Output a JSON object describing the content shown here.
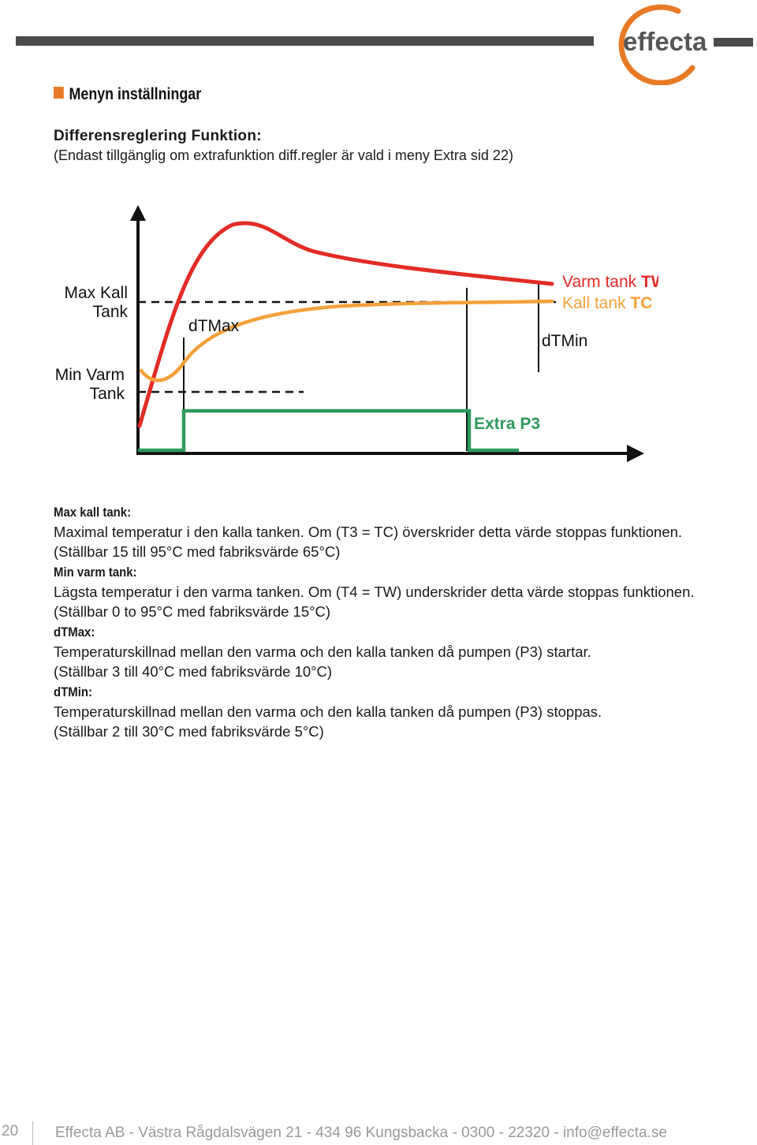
{
  "logo": {
    "text": "effecta",
    "ring_color": "#e97a25",
    "text_color": "#555555"
  },
  "section": {
    "title": "Menyn inställningar",
    "accent": "#e97a25"
  },
  "function": {
    "title": "Differensreglering Funktion:",
    "note": "(Endast tillgänglig om extrafunktion diff.regler är vald i meny Extra sid 22)"
  },
  "chart": {
    "label_max_kall": [
      "Max Kall",
      "Tank"
    ],
    "label_min_varm": [
      "Min Varm",
      "Tank"
    ],
    "label_dtmax": "dTMax",
    "label_dtmin": "dTMin",
    "legend_warm_prefix": "Varm tank ",
    "legend_warm_code": "TW",
    "legend_cold_prefix": "Kall tank ",
    "legend_cold_code": "TC",
    "label_extra": "Extra P3",
    "colors": {
      "warm": "#e32b26",
      "cold": "#f5a03a",
      "pump": "#2e9a5b",
      "axis": "#111111"
    }
  },
  "defs": [
    {
      "term": "Max kall tank:",
      "lines": [
        "Maximal temperatur i den kalla tanken. Om (T3 = TC) överskrider detta värde stoppas funktionen.",
        "(Ställbar 15 till 95°C med fabriksvärde 65°C)"
      ]
    },
    {
      "term": "Min varm tank:",
      "lines": [
        "Lägsta temperatur i den varma tanken. Om (T4 = TW) underskrider detta värde stoppas funktionen. (Ställbar 0 to 95°C med fabriksvärde 15°C)"
      ]
    },
    {
      "term": "dTMax:",
      "lines": [
        "Temperaturskillnad mellan den varma och den kalla tanken då pumpen (P3) startar.",
        "(Ställbar 3 till 40°C med fabriksvärde 10°C)"
      ]
    },
    {
      "term": "dTMin:",
      "lines": [
        "Temperaturskillnad mellan den varma och den kalla tanken då pumpen (P3) stoppas.",
        "(Ställbar 2 till 30°C med fabriksvärde 5°C)"
      ]
    }
  ],
  "footer": {
    "page": "20",
    "text": "Effecta AB - Västra Rågdalsvägen 21 - 434 96 Kungsbacka - 0300 - 22320 - info@effecta.se"
  }
}
